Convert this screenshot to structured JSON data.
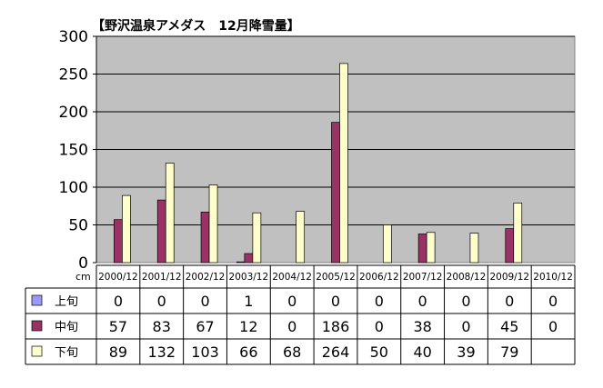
{
  "chart_data": {
    "type": "bar",
    "title": "【野沢温泉アメダス　12月降雪量】",
    "unit_label": "cm",
    "ylim": [
      0,
      300
    ],
    "yticks": [
      0,
      50,
      100,
      150,
      200,
      250,
      300
    ],
    "grid": true,
    "legend_placement": "bottom-left table",
    "categories": [
      "2000/12",
      "2001/12",
      "2002/12",
      "2003/12",
      "2004/12",
      "2005/12",
      "2006/12",
      "2007/12",
      "2008/12",
      "2009/12",
      "2010/12"
    ],
    "series": [
      {
        "name": "上旬",
        "color": "#9999ff",
        "values": [
          0,
          0,
          0,
          1,
          0,
          0,
          0,
          0,
          0,
          0,
          0
        ],
        "labels": [
          "0",
          "0",
          "0",
          "1",
          "0",
          "0",
          "0",
          "0",
          "0",
          "0",
          "0"
        ]
      },
      {
        "name": "中旬",
        "color": "#993366",
        "values": [
          57,
          83,
          67,
          12,
          0,
          186,
          0,
          38,
          0,
          45,
          0
        ],
        "labels": [
          "57",
          "83",
          "67",
          "12",
          "0",
          "186",
          "0",
          "38",
          "0",
          "45",
          "0"
        ]
      },
      {
        "name": "下旬",
        "color": "#ffffcc",
        "values": [
          89,
          132,
          103,
          66,
          68,
          264,
          50,
          40,
          39,
          79,
          null
        ],
        "labels": [
          "89",
          "132",
          "103",
          "66",
          "68",
          "264",
          "50",
          "40",
          "39",
          "79",
          ""
        ]
      }
    ],
    "plot_bg": "#c0c0c0"
  }
}
